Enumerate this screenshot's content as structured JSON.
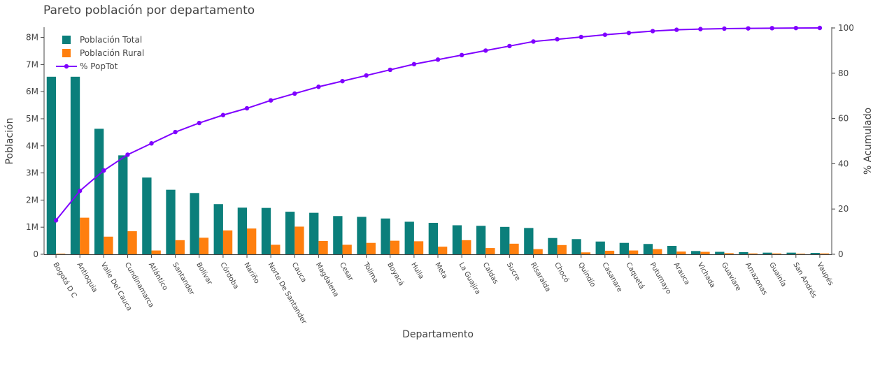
{
  "chart_data": {
    "type": "bar",
    "title": "Pareto población por departamento",
    "xlabel": "Departamento",
    "ylabel": "Población",
    "y2label": "% Acumulado",
    "ylim": [
      0,
      8350000
    ],
    "y2lim": [
      0,
      100
    ],
    "yticks": [
      "0",
      "1M",
      "2M",
      "3M",
      "4M",
      "5M",
      "6M",
      "7M",
      "8M"
    ],
    "y2ticks": [
      "0",
      "20",
      "40",
      "60",
      "80",
      "100"
    ],
    "legend_position": "top-left",
    "categories": [
      "Bogotá D C",
      "Antioquia",
      "Valle Del Cauca",
      "Cundinamarca",
      "Atlántico",
      "Santander",
      "Bolívar",
      "Córdoba",
      "Nariño",
      "Norte De Santander",
      "Cauca",
      "Magdalena",
      "Cesar",
      "Tolima",
      "Boyacá",
      "Huila",
      "Meta",
      "La Guajira",
      "Caldas",
      "Sucre",
      "Risaralda",
      "Chocó",
      "Quindío",
      "Casanare",
      "Caquetá",
      "Putumayo",
      "Arauca",
      "Vichada",
      "Guaviare",
      "Amazonas",
      "Guainía",
      "San Andrés",
      "Vaupés"
    ],
    "series": [
      {
        "name": "Población Total",
        "kind": "bar",
        "axis": "y",
        "color": "#0b7f7b",
        "values": [
          6550000,
          6550000,
          4630000,
          3650000,
          2830000,
          2380000,
          2260000,
          1850000,
          1720000,
          1710000,
          1570000,
          1530000,
          1410000,
          1380000,
          1320000,
          1200000,
          1160000,
          1070000,
          1050000,
          1010000,
          970000,
          600000,
          560000,
          470000,
          420000,
          380000,
          310000,
          120000,
          90000,
          80000,
          60000,
          60000,
          50000
        ]
      },
      {
        "name": "Población Rural",
        "kind": "bar",
        "axis": "y",
        "color": "#ff7f0e",
        "values": [
          20000,
          1350000,
          650000,
          850000,
          140000,
          520000,
          610000,
          880000,
          950000,
          350000,
          1020000,
          490000,
          350000,
          420000,
          500000,
          480000,
          280000,
          520000,
          230000,
          390000,
          190000,
          340000,
          70000,
          130000,
          140000,
          190000,
          100000,
          90000,
          40000,
          30000,
          30000,
          20000,
          30000
        ]
      },
      {
        "name": "% PopTot",
        "kind": "line",
        "axis": "y2",
        "color": "#7f00ff",
        "values": [
          15,
          28,
          37,
          44,
          49,
          54,
          58,
          61.5,
          64.5,
          68,
          71,
          74,
          76.5,
          79,
          81.5,
          84,
          86,
          88,
          90,
          92,
          94,
          95,
          96,
          97,
          97.8,
          98.6,
          99.2,
          99.5,
          99.7,
          99.8,
          99.9,
          99.95,
          100
        ]
      }
    ]
  }
}
